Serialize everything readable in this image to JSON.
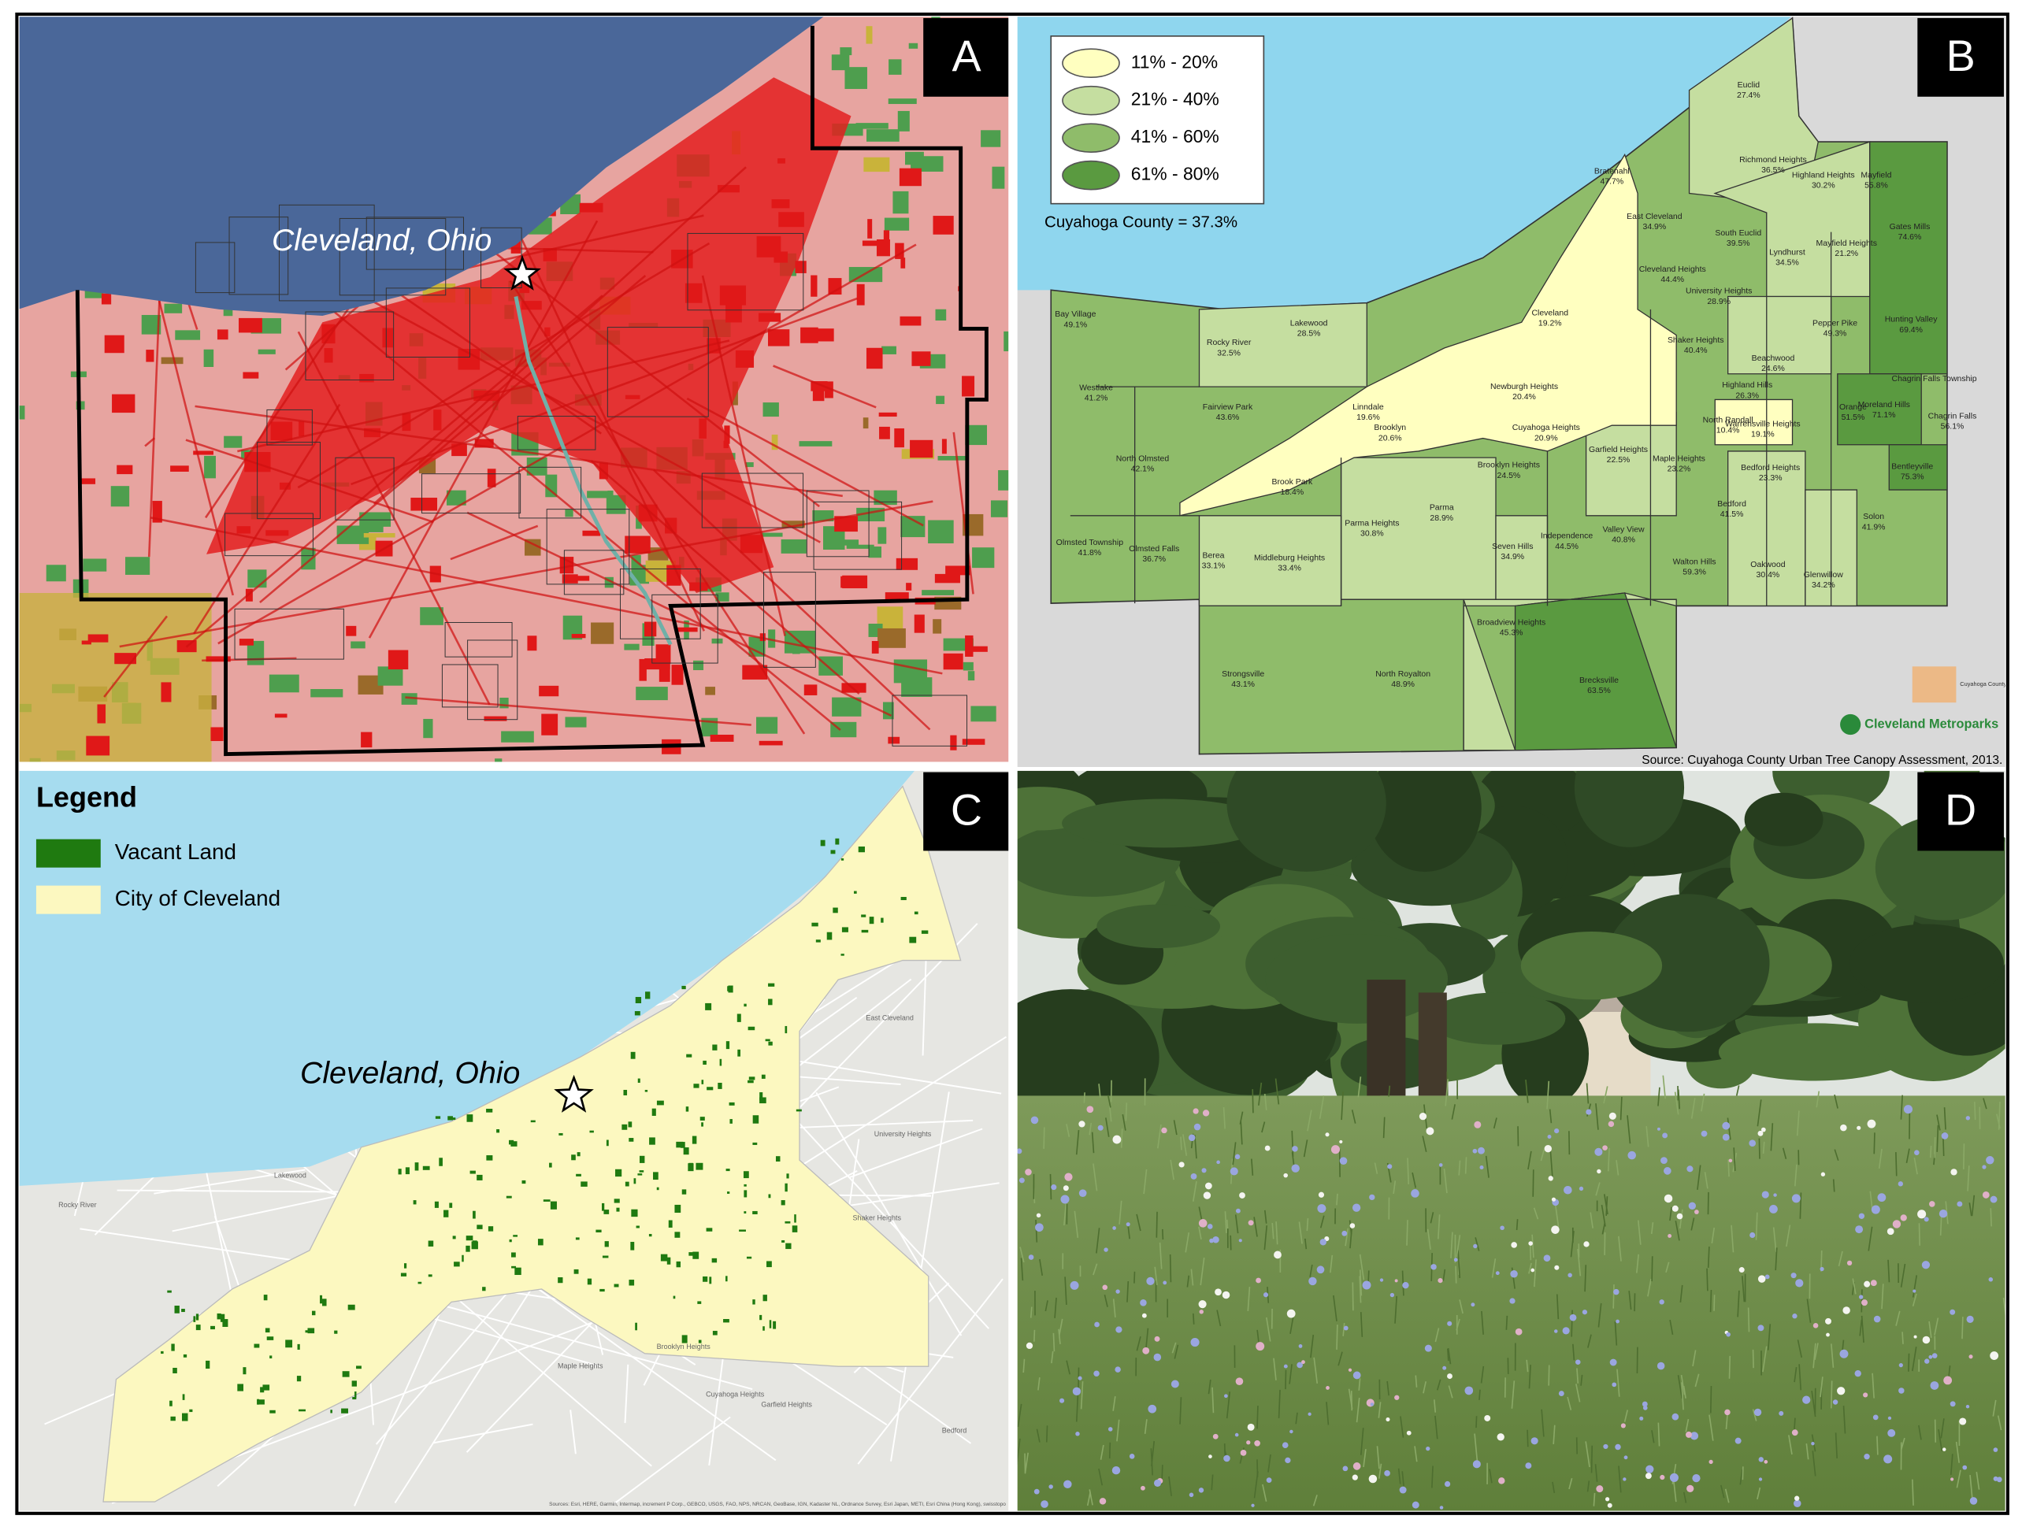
{
  "panels": {
    "a": {
      "letter": "A",
      "label": "Cleveland, Ohio"
    },
    "b": {
      "letter": "B",
      "legend": [
        {
          "label": "11% - 20%",
          "color": "#ffffc0"
        },
        {
          "label": "21% - 40%",
          "color": "#c5dea0"
        },
        {
          "label": "41% - 60%",
          "color": "#8fbc6a"
        },
        {
          "label": "61% - 80%",
          "color": "#5a9a40"
        }
      ],
      "county_summary": "Cuyahoga County = 37.3%",
      "source": "Source: Cuyahoga County Urban Tree Canopy Assessment, 2013.",
      "logos": [
        "Cuyahoga County Planning Commission",
        "Cleveland Metroparks"
      ],
      "municipalities": [
        {
          "name": "Euclid",
          "canopy": "27.4%"
        },
        {
          "name": "Richmond Heights",
          "canopy": "36.5%"
        },
        {
          "name": "Highland Heights",
          "canopy": "30.2%"
        },
        {
          "name": "Mayfield",
          "canopy": "55.8%"
        },
        {
          "name": "Bratenahl",
          "canopy": "47.7%"
        },
        {
          "name": "East Cleveland",
          "canopy": "34.9%"
        },
        {
          "name": "South Euclid",
          "canopy": "39.5%"
        },
        {
          "name": "Lyndhurst",
          "canopy": "34.5%"
        },
        {
          "name": "Mayfield Heights",
          "canopy": "21.2%"
        },
        {
          "name": "Gates Mills",
          "canopy": "74.6%"
        },
        {
          "name": "Cleveland Heights",
          "canopy": "44.4%"
        },
        {
          "name": "University Heights",
          "canopy": "28.9%"
        },
        {
          "name": "Cleveland",
          "canopy": "19.2%"
        },
        {
          "name": "Bay Village",
          "canopy": "49.1%"
        },
        {
          "name": "Lakewood",
          "canopy": "28.5%"
        },
        {
          "name": "Rocky River",
          "canopy": "32.5%"
        },
        {
          "name": "Shaker Heights",
          "canopy": "40.4%"
        },
        {
          "name": "Pepper Pike",
          "canopy": "49.3%"
        },
        {
          "name": "Hunting Valley",
          "canopy": "69.4%"
        },
        {
          "name": "Beachwood",
          "canopy": "24.6%"
        },
        {
          "name": "Westlake",
          "canopy": "41.2%"
        },
        {
          "name": "Highland Hills",
          "canopy": "26.3%"
        },
        {
          "name": "Orange",
          "canopy": "51.5%"
        },
        {
          "name": "Moreland Hills",
          "canopy": "71.1%"
        },
        {
          "name": "Chagrin Falls Township",
          "canopy": ""
        },
        {
          "name": "Chagrin Falls",
          "canopy": "56.1%"
        },
        {
          "name": "Newburgh Heights",
          "canopy": "20.4%"
        },
        {
          "name": "Linndale",
          "canopy": "19.6%"
        },
        {
          "name": "Brooklyn",
          "canopy": "20.6%"
        },
        {
          "name": "Fairview Park",
          "canopy": "43.6%"
        },
        {
          "name": "Cuyahoga Heights",
          "canopy": "20.9%"
        },
        {
          "name": "Warrensville Heights",
          "canopy": "19.1%"
        },
        {
          "name": "North Randall",
          "canopy": "10.4%"
        },
        {
          "name": "Garfield Heights",
          "canopy": "22.5%"
        },
        {
          "name": "North Olmsted",
          "canopy": "42.1%"
        },
        {
          "name": "Maple Heights",
          "canopy": "23.2%"
        },
        {
          "name": "Bedford Heights",
          "canopy": "23.3%"
        },
        {
          "name": "Bentleyville",
          "canopy": "75.3%"
        },
        {
          "name": "Brooklyn Heights",
          "canopy": "24.5%"
        },
        {
          "name": "Brook Park",
          "canopy": "18.4%"
        },
        {
          "name": "Parma",
          "canopy": "28.9%"
        },
        {
          "name": "Bedford",
          "canopy": "41.5%"
        },
        {
          "name": "Solon",
          "canopy": "41.9%"
        },
        {
          "name": "Parma Heights",
          "canopy": "30.8%"
        },
        {
          "name": "Olmsted Township",
          "canopy": "41.8%"
        },
        {
          "name": "Olmsted Falls",
          "canopy": "36.7%"
        },
        {
          "name": "Berea",
          "canopy": "33.1%"
        },
        {
          "name": "Middleburg Heights",
          "canopy": "33.4%"
        },
        {
          "name": "Seven Hills",
          "canopy": "34.9%"
        },
        {
          "name": "Independence",
          "canopy": "44.5%"
        },
        {
          "name": "Valley View",
          "canopy": "40.8%"
        },
        {
          "name": "Walton Hills",
          "canopy": "59.3%"
        },
        {
          "name": "Oakwood",
          "canopy": "30.4%"
        },
        {
          "name": "Glenwillow",
          "canopy": "34.2%"
        },
        {
          "name": "Broadview Heights",
          "canopy": "45.3%"
        },
        {
          "name": "Strongsville",
          "canopy": "43.1%"
        },
        {
          "name": "North Royalton",
          "canopy": "48.9%"
        },
        {
          "name": "Brecksville",
          "canopy": "63.5%"
        }
      ]
    },
    "c": {
      "letter": "C",
      "legend_title": "Legend",
      "legend": [
        {
          "label": "Vacant Land",
          "color": "#1f7a10"
        },
        {
          "label": "City of Cleveland",
          "color": "#fcf8c0"
        }
      ],
      "label": "Cleveland, Ohio",
      "basemap_labels": [
        "Lakewood",
        "Rocky River",
        "East Cleveland",
        "University Heights",
        "Shaker Heights",
        "Cuyahoga Heights",
        "Maple Heights",
        "Garfield Heights",
        "Brooklyn Heights",
        "Bedford"
      ],
      "attribution": "Sources: Esri, HERE, Garmin, Intermap, increment P Corp., GEBCO, USGS, FAO, NPS, NRCAN, GeoBase, IGN, Kadaster NL, Ordnance Survey, Esri Japan, METI, Esri China (Hong Kong), swisstopo"
    },
    "d": {
      "letter": "D"
    }
  }
}
